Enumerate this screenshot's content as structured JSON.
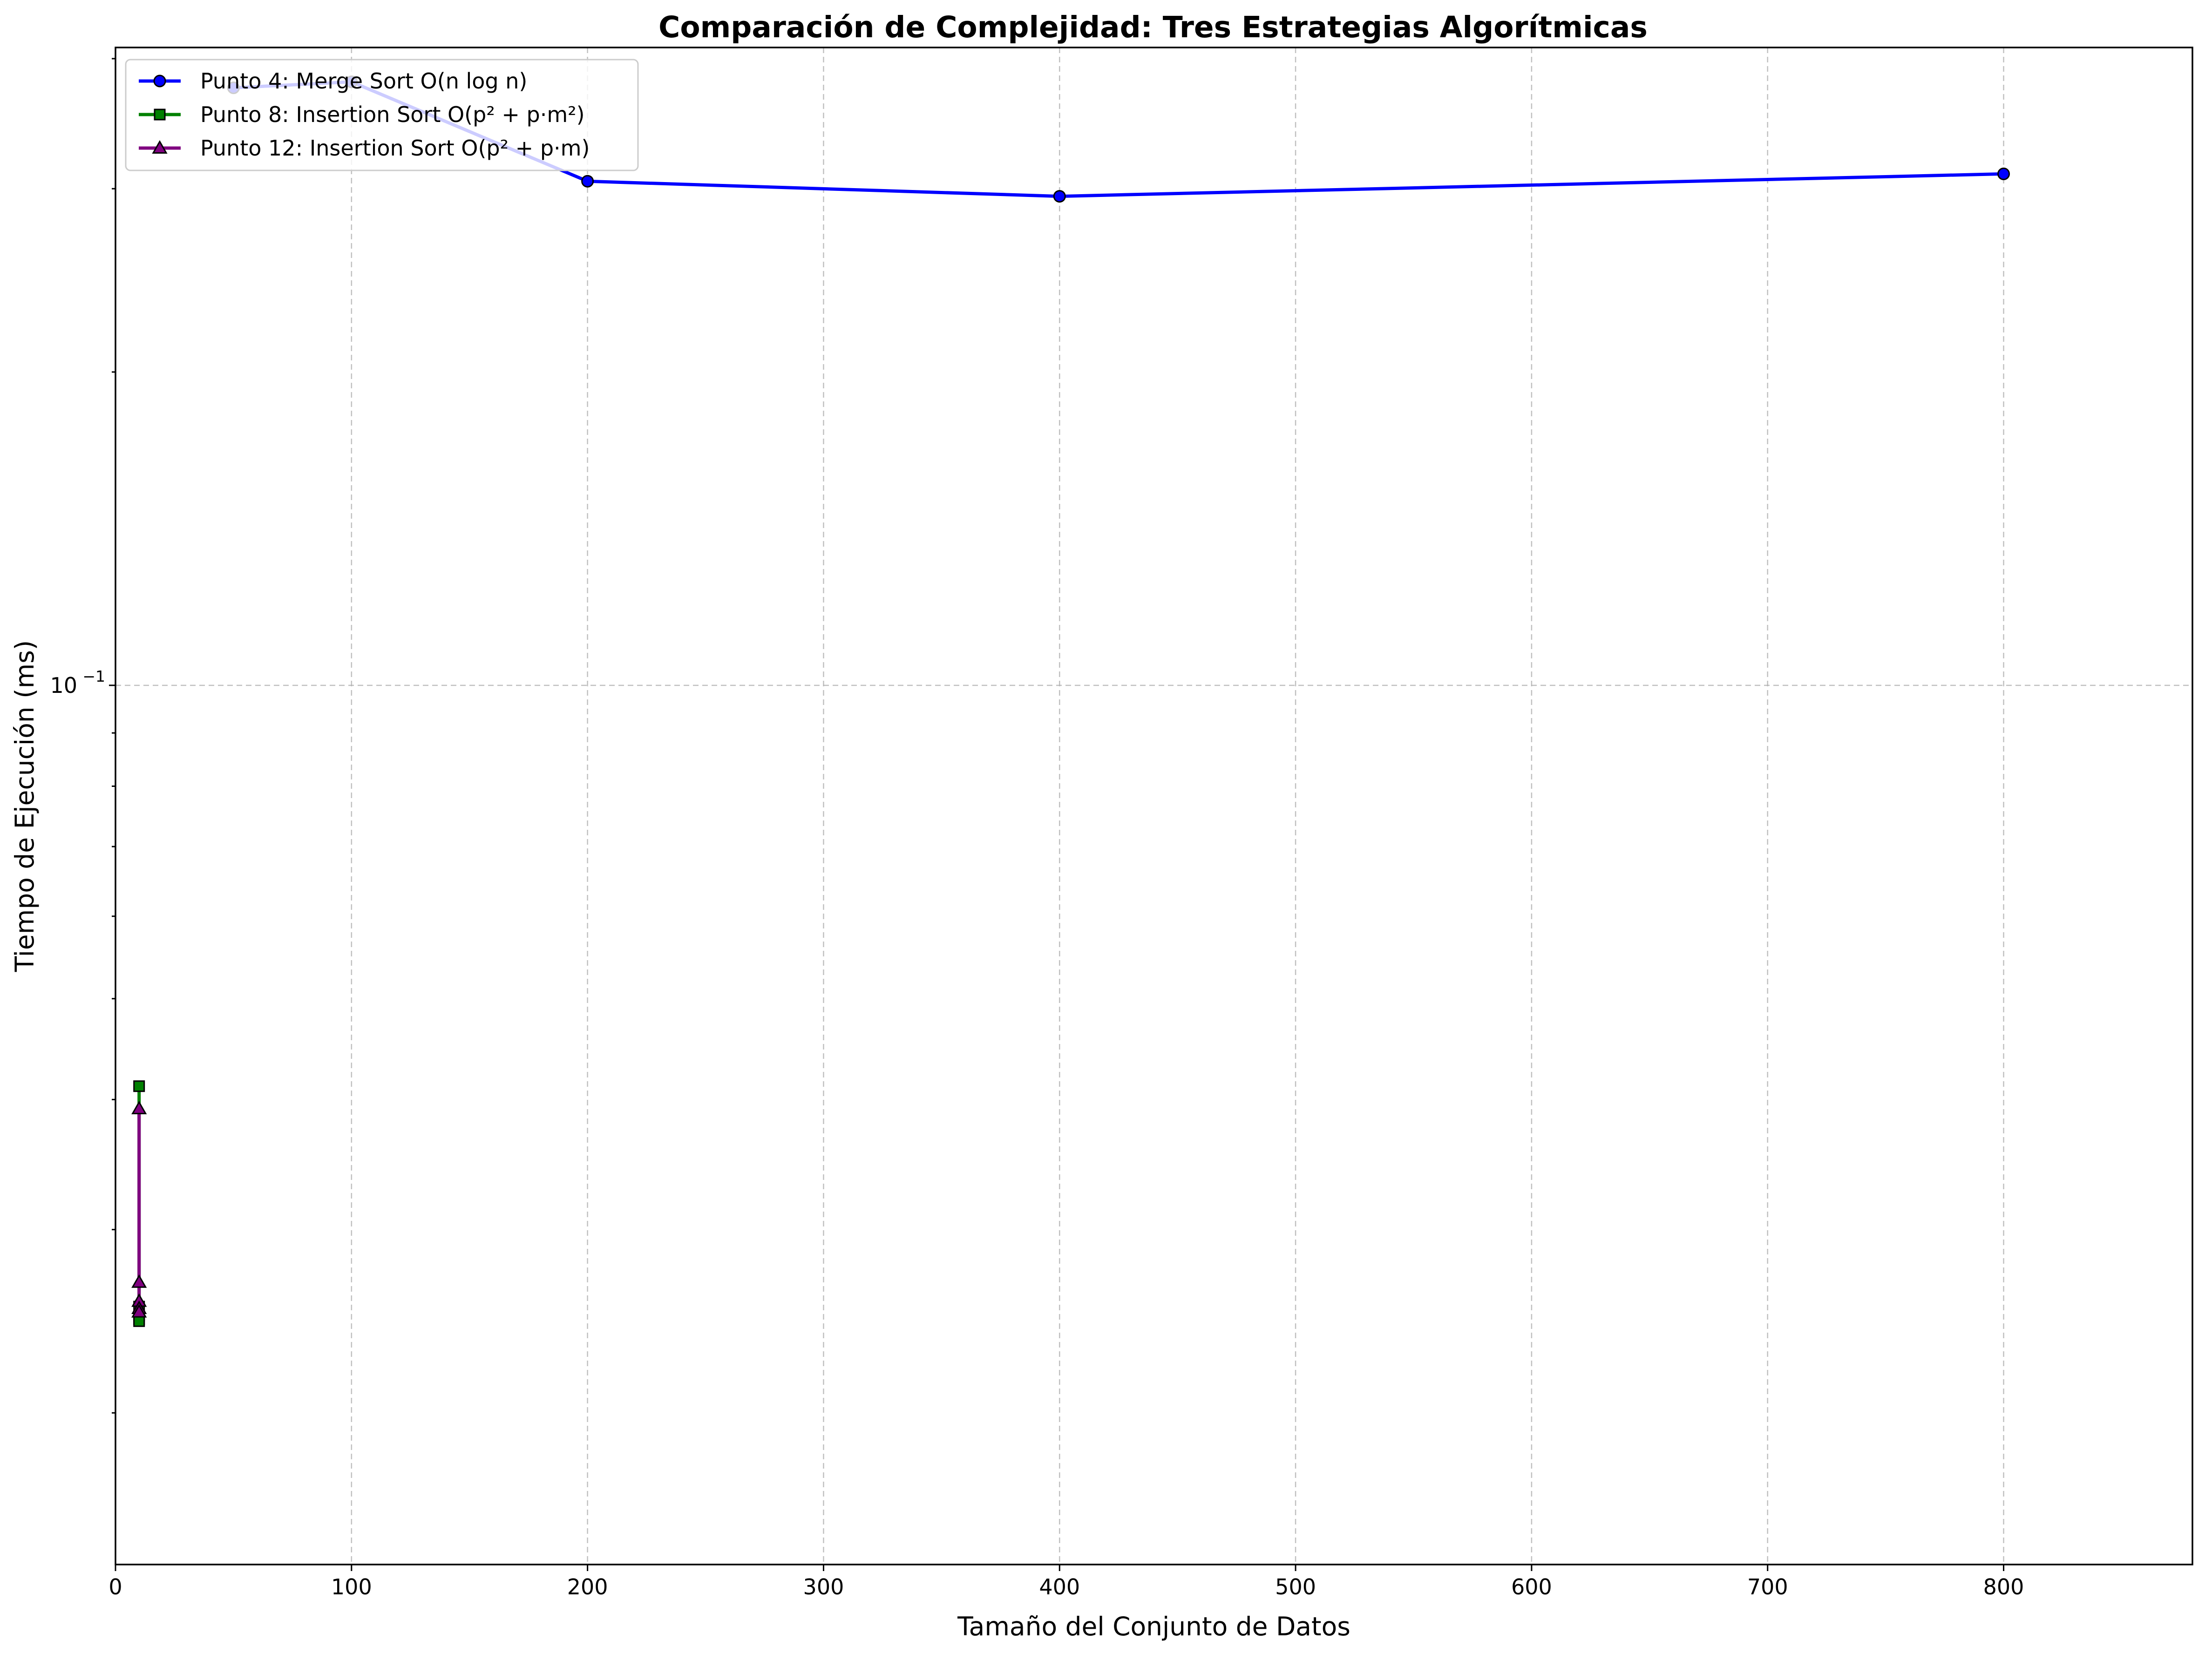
{
  "chart_data": {
    "type": "line",
    "title": "Comparación de Complejidad: Tres Estrategias Algorítmicas",
    "xlabel": "Tamaño del Conjunto de Datos",
    "ylabel": "Tiempo de Ejecución (ms)",
    "y_scale": "log",
    "xlim": [
      0,
      880
    ],
    "ylim": [
      0.0143,
      0.41
    ],
    "x_ticks": [
      {
        "value": 0,
        "label": "0"
      },
      {
        "value": 100,
        "label": "100"
      },
      {
        "value": 200,
        "label": "200"
      },
      {
        "value": 300,
        "label": "300"
      },
      {
        "value": 400,
        "label": "400"
      },
      {
        "value": 500,
        "label": "500"
      },
      {
        "value": 600,
        "label": "600"
      },
      {
        "value": 700,
        "label": "700"
      },
      {
        "value": 800,
        "label": "800"
      }
    ],
    "y_ticks": [
      {
        "value": 0.1,
        "label_base": "10",
        "label_exp": "−1"
      }
    ],
    "grid": true,
    "legend_position": "upper left",
    "series": [
      {
        "name": "Punto 4: Merge Sort O(n log n)",
        "color": "#0000ff",
        "marker": "circle",
        "x": [
          50,
          100,
          200,
          400,
          800
        ],
        "y": [
          0.375,
          0.38,
          0.305,
          0.295,
          0.31
        ]
      },
      {
        "name": "Punto 8: Insertion Sort O(p² + p·m²)",
        "color": "#008000",
        "marker": "square",
        "x": [
          10,
          10,
          10,
          10,
          10
        ],
        "y": [
          0.0412,
          0.0253,
          0.0248,
          0.0246,
          0.0245
        ]
      },
      {
        "name": "Punto 12: Insertion Sort O(p² + p·m)",
        "color": "#800080",
        "marker": "triangle",
        "x": [
          10,
          10,
          10,
          10,
          10
        ],
        "y": [
          0.0392,
          0.0267,
          0.0256,
          0.0252,
          0.025
        ]
      }
    ]
  }
}
